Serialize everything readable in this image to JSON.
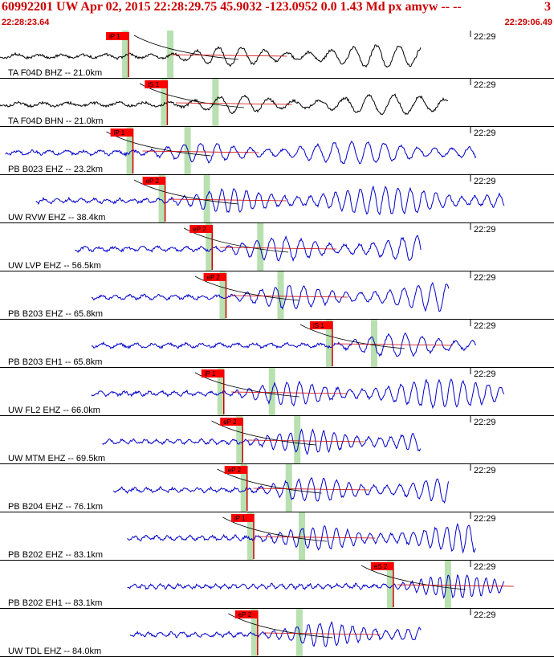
{
  "header": {
    "title": "60992201 UW Apr 02, 2015 22:28:29.75    45.9032 -123.0952  0.0 1.43 Md px amyw -- --",
    "title_right": "3",
    "start_time": "22:28:23.64",
    "end_time": "22:29:06.49"
  },
  "chart_data": {
    "type": "line",
    "x_range": [
      "22:28:23.64",
      "22:29:06.49"
    ],
    "tick_label": "22:29",
    "traces": [
      {
        "label": "TA F04D BHZ -- 21.0km",
        "color": "#000000",
        "picks": [
          {
            "label": "iP 1",
            "x": 0.232
          }
        ],
        "start": 0.0,
        "onset": 0.3,
        "amp": 0.35,
        "freq": 9
      },
      {
        "label": "TA F04D BHN -- 21.0km",
        "color": "#000000",
        "picks": [
          {
            "label": "iS 1",
            "x": 0.302
          }
        ],
        "start": 0.0,
        "onset": 0.31,
        "amp": 0.3,
        "freq": 8
      },
      {
        "label": "PB B023 EHZ -- 23.2km",
        "color": "#0000cc",
        "picks": [
          {
            "label": "iP 1",
            "x": 0.24
          }
        ],
        "start": 0.01,
        "onset": 0.25,
        "amp": 0.35,
        "freq": 12
      },
      {
        "label": "UW RVW EHZ -- 38.4km",
        "color": "#0000cc",
        "picks": [
          {
            "label": "eP 2",
            "x": 0.298
          }
        ],
        "start": 0.065,
        "onset": 0.3,
        "amp": 0.45,
        "freq": 16
      },
      {
        "label": "UW LVP EHZ -- 56.5km",
        "color": "#0000cc",
        "picks": [
          {
            "label": "eP 2",
            "x": 0.383
          }
        ],
        "start": 0.135,
        "onset": 0.39,
        "amp": 0.45,
        "freq": 14
      },
      {
        "label": "PB B203 EHZ -- 65.8km",
        "color": "#0000cc",
        "picks": [
          {
            "label": "eP 2",
            "x": 0.408
          }
        ],
        "start": 0.165,
        "onset": 0.41,
        "amp": 0.45,
        "freq": 14
      },
      {
        "label": "PB B203 EH1 -- 65.8km",
        "color": "#0000cc",
        "picks": [
          {
            "label": "iS 1",
            "x": 0.6
          }
        ],
        "start": 0.165,
        "onset": 0.6,
        "amp": 0.45,
        "freq": 12
      },
      {
        "label": "UW FL2 EHZ -- 66.0km",
        "color": "#0000cc",
        "picks": [
          {
            "label": "iP 1",
            "x": 0.404
          }
        ],
        "start": 0.165,
        "onset": 0.41,
        "amp": 0.45,
        "freq": 16
      },
      {
        "label": "UW MTM EHZ -- 69.5km",
        "color": "#0000cc",
        "picks": [
          {
            "label": "eP 2",
            "x": 0.438
          }
        ],
        "start": 0.185,
        "onset": 0.44,
        "amp": 0.45,
        "freq": 18
      },
      {
        "label": "PB B204 EHZ -- 76.1km",
        "color": "#0000cc",
        "picks": [
          {
            "label": "eP 2",
            "x": 0.446
          }
        ],
        "start": 0.205,
        "onset": 0.45,
        "amp": 0.45,
        "freq": 16
      },
      {
        "label": "PB B202 EHZ -- 83.1km",
        "color": "#0000cc",
        "picks": [
          {
            "label": "iP 1",
            "x": 0.458
          }
        ],
        "start": 0.23,
        "onset": 0.46,
        "amp": 0.45,
        "freq": 18
      },
      {
        "label": "PB B202 EH1 -- 83.1km",
        "color": "#0000cc",
        "picks": [
          {
            "label": "eS 2",
            "x": 0.71
          }
        ],
        "start": 0.23,
        "onset": 0.71,
        "amp": 0.45,
        "freq": 22
      },
      {
        "label": "UW TDL EHZ -- 84.0km",
        "color": "#0000cc",
        "picks": [
          {
            "label": "eP 2",
            "x": 0.465
          }
        ],
        "start": 0.235,
        "onset": 0.47,
        "amp": 0.45,
        "freq": 18
      }
    ]
  }
}
